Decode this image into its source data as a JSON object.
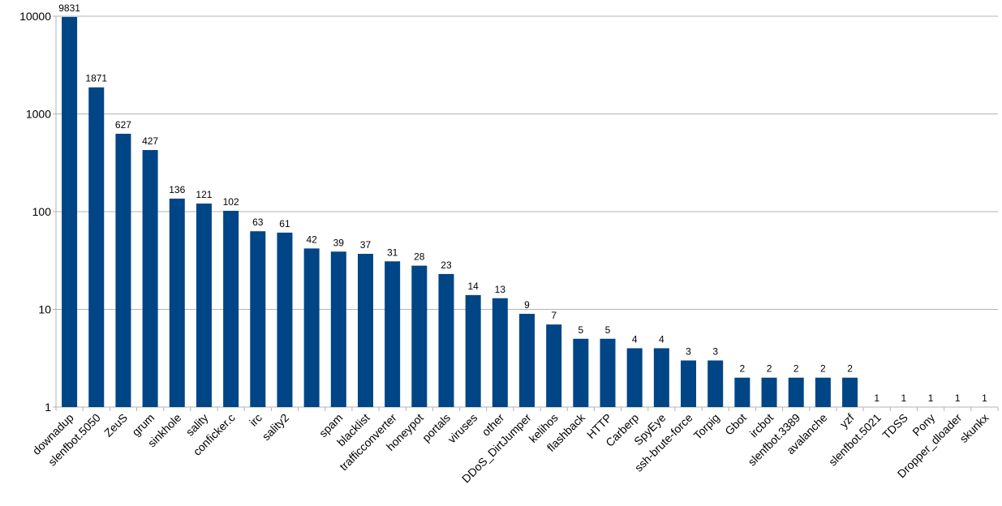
{
  "chart_data": {
    "type": "bar",
    "title": "",
    "xlabel": "",
    "ylabel": "",
    "yscale": "log",
    "ylim": [
      1,
      10000
    ],
    "yticks": [
      "1",
      "10",
      "100",
      "1000",
      "10000"
    ],
    "grid": true,
    "legend": "none",
    "bar_color": "#004586",
    "categories": [
      "downadup",
      "slenfbot.5050",
      "ZeuS",
      "grum",
      "sinkhole",
      "sality",
      "conficker.c",
      "irc",
      "sality2",
      "",
      "spam",
      "blacklist",
      "trafficconverter",
      "honeypot",
      "portals",
      "viruses",
      "other",
      "DDoS_DirtJumper",
      "kelihos",
      "flashback",
      "HTTP",
      "Carberp",
      "SpyEye",
      "ssh-brute-force",
      "Torpig",
      "Gbot",
      "ircbot",
      "slenfbot.3389",
      "avalanche",
      "yzf",
      "slenfbot.5021",
      "TDSS",
      "Pony",
      "Dropper_dloader",
      "skunkx"
    ],
    "values": [
      9831,
      1871,
      627,
      427,
      136,
      121,
      102,
      63,
      61,
      42,
      39,
      37,
      31,
      28,
      23,
      14,
      13,
      9,
      7,
      5,
      5,
      4,
      4,
      3,
      3,
      2,
      2,
      2,
      2,
      2,
      1,
      1,
      1,
      1,
      1
    ],
    "data_labels": [
      "9831",
      "1871",
      "627",
      "427",
      "136",
      "121",
      "102",
      "63",
      "61",
      "42",
      "39",
      "37",
      "31",
      "28",
      "23",
      "14",
      "13",
      "9",
      "7",
      "5",
      "5",
      "4",
      "4",
      "3",
      "3",
      "2",
      "2",
      "2",
      "2",
      "2",
      "1",
      "1",
      "1",
      "1",
      "1"
    ]
  }
}
